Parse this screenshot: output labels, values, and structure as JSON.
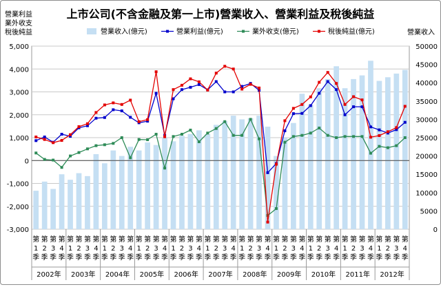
{
  "chart_data": {
    "type": "bar+line",
    "title": "上市公司(不含金融及第一上市)營業收入、營業利益及稅後純益",
    "left_axis_label_lines": [
      "營業利益",
      "業外收支",
      "稅後純益"
    ],
    "right_axis_label": "營業收入",
    "left_ylim": [
      -3000,
      5000
    ],
    "left_ticks": [
      "-3,000",
      "-2,000",
      "-1,000",
      "0",
      "1,000",
      "2,000",
      "3,000",
      "4,000",
      "5,000"
    ],
    "right_ylim": [
      0,
      50000
    ],
    "right_ticks": [
      "0",
      "5000",
      "10000",
      "15000",
      "20000",
      "25000",
      "30000",
      "35000",
      "40000",
      "45000",
      "50000"
    ],
    "quarter_label_chars": [
      "第",
      "1",
      "季"
    ],
    "years": [
      "2002年",
      "2003年",
      "2004年",
      "2005年",
      "2006年",
      "2007年",
      "2008年",
      "2009年",
      "2010年",
      "2011年",
      "2012年"
    ],
    "quarters": [
      [
        "第",
        "1",
        "季"
      ],
      [
        "第",
        "2",
        "季"
      ],
      [
        "第",
        "3",
        "季"
      ],
      [
        "第",
        "4",
        "季"
      ],
      [
        "第",
        "1",
        "季"
      ],
      [
        "第",
        "2",
        "季"
      ],
      [
        "第",
        "3",
        "季"
      ],
      [
        "第",
        "4",
        "季"
      ],
      [
        "第",
        "1",
        "季"
      ],
      [
        "第",
        "2",
        "季"
      ],
      [
        "第",
        "3",
        "季"
      ],
      [
        "第",
        "4",
        "季"
      ],
      [
        "第",
        "1",
        "季"
      ],
      [
        "第",
        "2",
        "季"
      ],
      [
        "第",
        "3",
        "季"
      ],
      [
        "第",
        "4",
        "季"
      ],
      [
        "第",
        "1",
        "季"
      ],
      [
        "第",
        "2",
        "季"
      ],
      [
        "第",
        "3",
        "季"
      ],
      [
        "第",
        "4",
        "季"
      ],
      [
        "第",
        "1",
        "季"
      ],
      [
        "第",
        "2",
        "季"
      ],
      [
        "第",
        "3",
        "季"
      ],
      [
        "第",
        "4",
        "季"
      ],
      [
        "第",
        "1",
        "季"
      ],
      [
        "第",
        "2",
        "季"
      ],
      [
        "第",
        "3",
        "季"
      ],
      [
        "第",
        "4",
        "季"
      ],
      [
        "第",
        "1",
        "季"
      ],
      [
        "第",
        "2",
        "季"
      ],
      [
        "第",
        "3",
        "季"
      ],
      [
        "第",
        "4",
        "季"
      ],
      [
        "第",
        "1",
        "季"
      ],
      [
        "第",
        "2",
        "季"
      ],
      [
        "第",
        "3",
        "季"
      ],
      [
        "第",
        "4",
        "季"
      ],
      [
        "第",
        "1",
        "季"
      ],
      [
        "第",
        "2",
        "季"
      ],
      [
        "第",
        "3",
        "季"
      ],
      [
        "第",
        "4",
        "季"
      ],
      [
        "第",
        "1",
        "季"
      ],
      [
        "第",
        "2",
        "季"
      ],
      [
        "第",
        "3",
        "季"
      ],
      [
        "第",
        "4",
        "季"
      ]
    ],
    "legend_position": "top",
    "grid": "horizontal",
    "series": [
      {
        "name": "營業收入(億元)",
        "axis": "right",
        "kind": "bar",
        "color": "#c5dff3",
        "values": [
          10500,
          13000,
          11000,
          15000,
          13500,
          15300,
          14500,
          20500,
          18000,
          21500,
          20000,
          22500,
          21500,
          23700,
          23000,
          25000,
          24000,
          25500,
          26000,
          27000,
          26000,
          28500,
          29500,
          31000,
          30000,
          30300,
          31000,
          28000,
          20000,
          25000,
          29000,
          37000,
          34000,
          38500,
          41000,
          44500,
          38500,
          41000,
          42000,
          46000,
          40500,
          41500,
          42500,
          43500
        ]
      },
      {
        "name": "營業利益(億元)",
        "axis": "left",
        "kind": "line",
        "color": "#0000cc",
        "values": [
          870,
          1030,
          800,
          1150,
          1060,
          1430,
          1520,
          1850,
          1880,
          2220,
          2170,
          1890,
          1650,
          1720,
          2940,
          1100,
          2700,
          3100,
          3200,
          3320,
          3090,
          3450,
          3000,
          3000,
          3240,
          3370,
          3070,
          -530,
          -130,
          1300,
          2050,
          2060,
          2400,
          2940,
          3450,
          3100,
          2000,
          2350,
          2350,
          1470,
          1340,
          1200,
          1350,
          1670
        ]
      },
      {
        "name": "業外收支(億元)",
        "axis": "left",
        "kind": "line",
        "color": "#2e8b57",
        "values": [
          330,
          50,
          20,
          -300,
          200,
          350,
          510,
          650,
          690,
          750,
          1000,
          120,
          920,
          910,
          1150,
          -330,
          1050,
          1150,
          1330,
          820,
          1200,
          1400,
          1700,
          1100,
          1100,
          1800,
          950,
          -2400,
          -2100,
          800,
          1050,
          1100,
          1200,
          1420,
          1100,
          1000,
          1050,
          1050,
          1050,
          320,
          620,
          560,
          650,
          1000
        ]
      },
      {
        "name": "稅後純益(億元)",
        "axis": "left",
        "kind": "line",
        "color": "#e30000",
        "values": [
          1030,
          920,
          780,
          880,
          1130,
          1480,
          1610,
          2100,
          2430,
          2520,
          2450,
          2640,
          1700,
          1790,
          3880,
          1040,
          3100,
          3290,
          3570,
          3440,
          3080,
          3820,
          4120,
          4000,
          3120,
          3330,
          3170,
          -2690,
          -160,
          1740,
          2280,
          2450,
          2780,
          3420,
          3850,
          3370,
          2450,
          2790,
          2650,
          1020,
          1090,
          1260,
          1440,
          2370
        ]
      }
    ]
  }
}
